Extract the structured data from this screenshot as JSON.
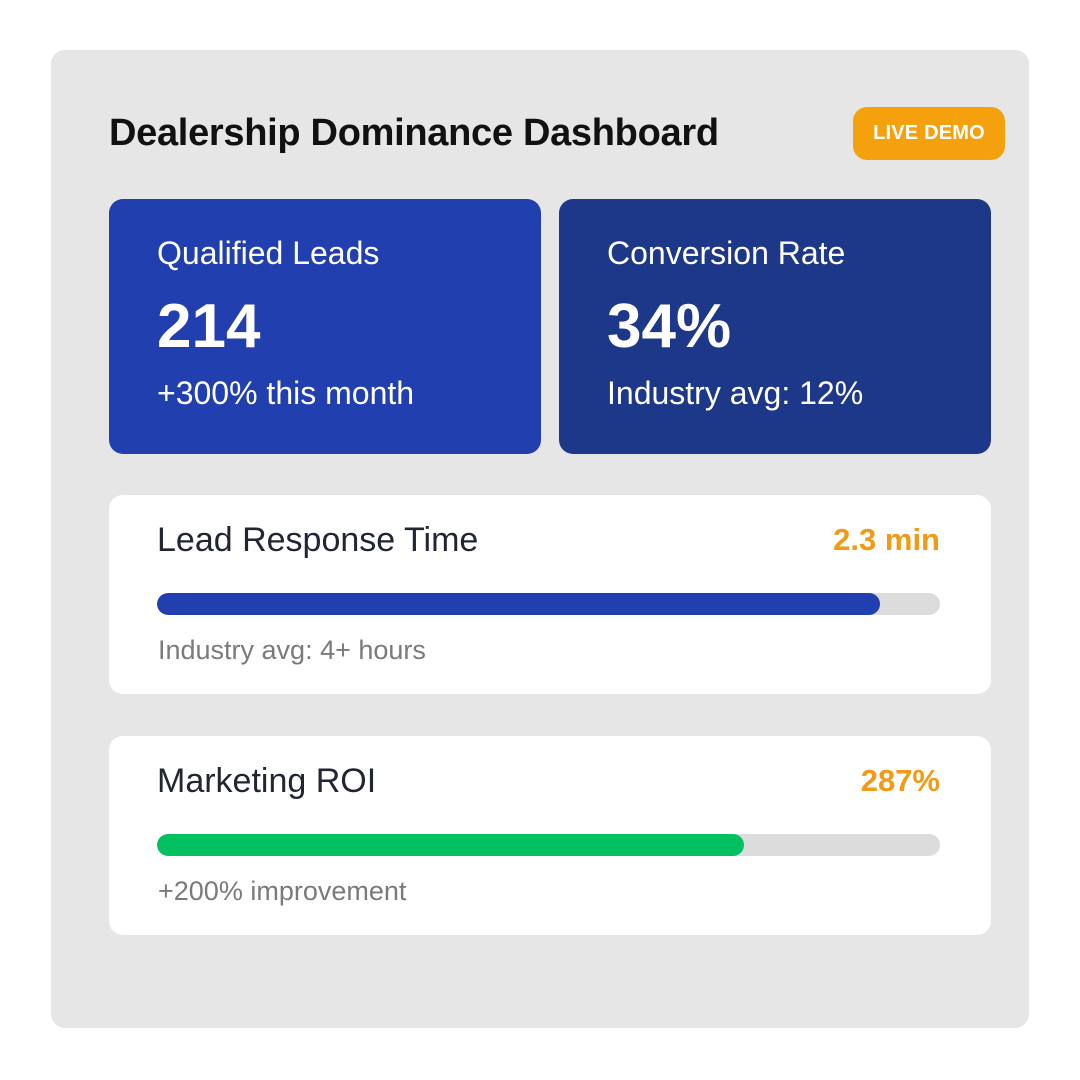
{
  "dashboard": {
    "title": "Dealership Dominance Dashboard",
    "badge": "LIVE DEMO",
    "badge_color": "#f5a10d"
  },
  "stats": [
    {
      "label": "Qualified Leads",
      "value": "214",
      "note": "+300% this month",
      "color": "#213fae"
    },
    {
      "label": "Conversion Rate",
      "value": "34%",
      "note": "Industry avg: 12%",
      "color": "#1e3889"
    }
  ],
  "metrics": [
    {
      "label": "Lead Response Time",
      "value": "2.3 min",
      "progress": 0.924,
      "bar_color": "#213fae",
      "note": "Industry avg: 4+ hours"
    },
    {
      "label": "Marketing ROI",
      "value": "287%",
      "progress": 0.75,
      "bar_color": "#00c060",
      "note": "+200% improvement"
    }
  ]
}
